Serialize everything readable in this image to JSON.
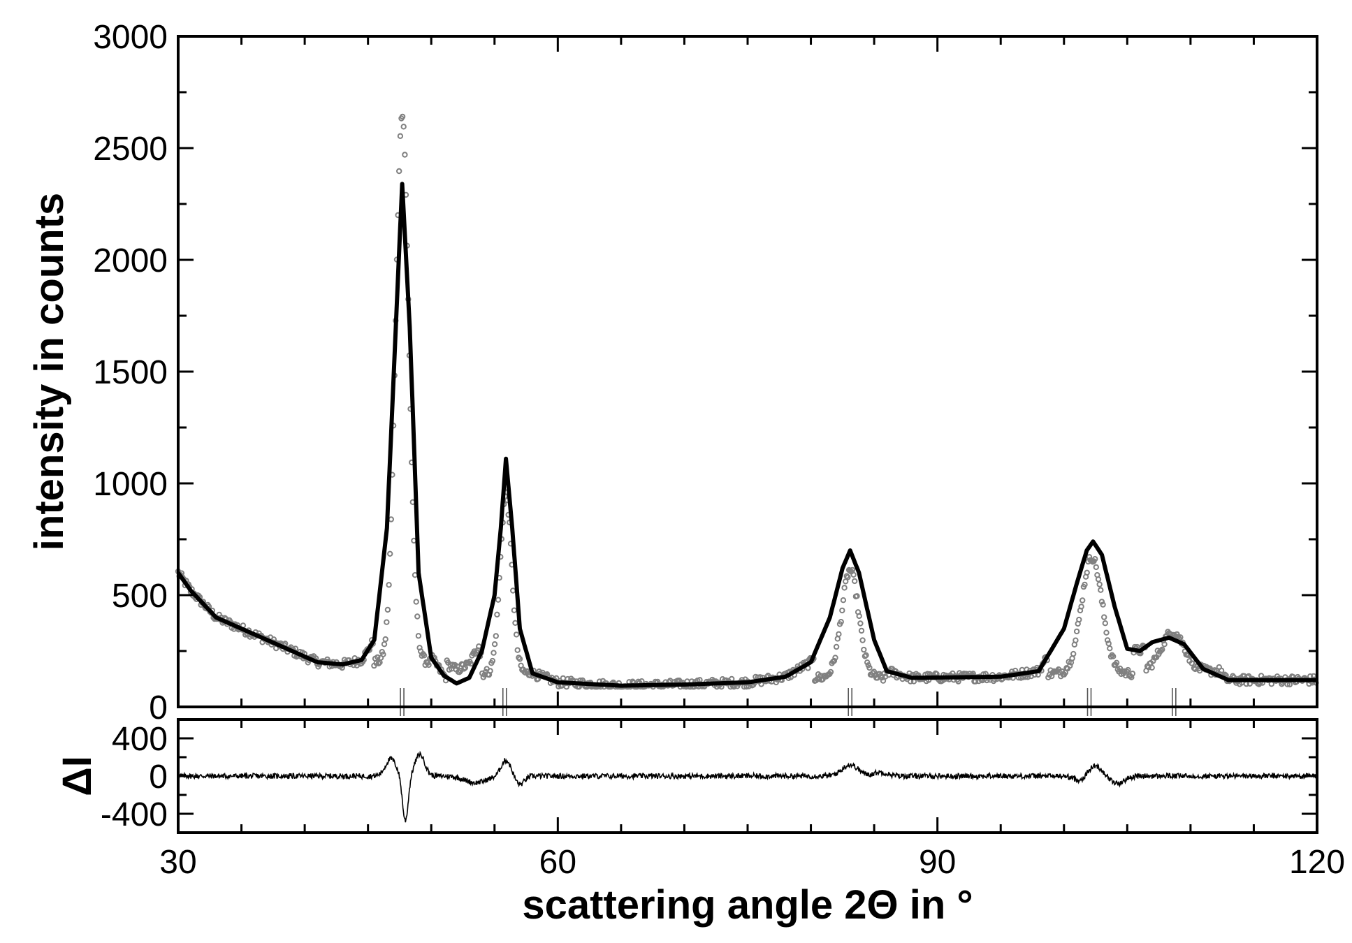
{
  "chart_data": [
    {
      "type": "scatter",
      "panel": "main",
      "xlabel": "scattering angle 2Θ  in °",
      "ylabel": "intensity in counts",
      "xlim": [
        30,
        120
      ],
      "ylim": [
        0,
        3000
      ],
      "x_ticks": [
        "30",
        "60",
        "90",
        "120"
      ],
      "y_ticks": [
        "0",
        "500",
        "1000",
        "1500",
        "2000",
        "2500",
        "3000"
      ],
      "x_minor_step": 5,
      "y_minor_step": 250,
      "series": [
        {
          "kind": "measured",
          "style": "grey open circles",
          "color": "#808080",
          "peaks": [
            {
              "center": 47.7,
              "height": 2450,
              "width": 0.75
            },
            {
              "center": 55.9,
              "height": 800,
              "width": 0.65
            },
            {
              "center": 83.1,
              "height": 480,
              "width": 0.95
            },
            {
              "center": 102.2,
              "height": 520,
              "width": 1.15
            },
            {
              "center": 108.6,
              "height": 175,
              "width": 1.3
            }
          ]
        },
        {
          "kind": "fit",
          "style": "black solid line",
          "color": "#000000",
          "points": [
            [
              30,
              600
            ],
            [
              31,
              520
            ],
            [
              33,
              400
            ],
            [
              35,
              350
            ],
            [
              37,
              300
            ],
            [
              39,
              250
            ],
            [
              41,
              200
            ],
            [
              43,
              190
            ],
            [
              44.5,
              210
            ],
            [
              45.5,
              300
            ],
            [
              46.5,
              800
            ],
            [
              47.2,
              1700
            ],
            [
              47.7,
              2340
            ],
            [
              48.3,
              1700
            ],
            [
              49,
              600
            ],
            [
              50,
              220
            ],
            [
              51,
              140
            ],
            [
              52,
              105
            ],
            [
              53,
              130
            ],
            [
              54,
              250
            ],
            [
              55,
              500
            ],
            [
              55.5,
              800
            ],
            [
              55.9,
              1110
            ],
            [
              56.4,
              800
            ],
            [
              57,
              350
            ],
            [
              58,
              150
            ],
            [
              60,
              110
            ],
            [
              65,
              95
            ],
            [
              70,
              100
            ],
            [
              75,
              110
            ],
            [
              78,
              135
            ],
            [
              80,
              200
            ],
            [
              81.5,
              400
            ],
            [
              82.5,
              620
            ],
            [
              83.1,
              700
            ],
            [
              83.8,
              600
            ],
            [
              85,
              300
            ],
            [
              86,
              160
            ],
            [
              88,
              130
            ],
            [
              95,
              135
            ],
            [
              98,
              160
            ],
            [
              100,
              350
            ],
            [
              101,
              550
            ],
            [
              101.8,
              700
            ],
            [
              102.3,
              740
            ],
            [
              103,
              680
            ],
            [
              104,
              450
            ],
            [
              105,
              260
            ],
            [
              106,
              250
            ],
            [
              107,
              290
            ],
            [
              108.3,
              310
            ],
            [
              109.5,
              280
            ],
            [
              111,
              170
            ],
            [
              113,
              120
            ],
            [
              120,
              120
            ]
          ]
        }
      ],
      "reflection_ticks": [
        47.7,
        55.8,
        83.1,
        102.0,
        108.7
      ]
    },
    {
      "type": "line",
      "panel": "difference",
      "ylabel": "ΔI",
      "xlim": [
        30,
        120
      ],
      "ylim": [
        -600,
        600
      ],
      "y_ticks": [
        "400",
        "0",
        "-400"
      ],
      "y_tick_values": [
        400,
        0,
        -400
      ],
      "y_minor_values": [
        200,
        -200
      ],
      "color": "#000000",
      "features": [
        {
          "center": 46.8,
          "amplitude": 180,
          "width": 0.6
        },
        {
          "center": 47.95,
          "amplitude": -480,
          "width": 0.32
        },
        {
          "center": 49.1,
          "amplitude": 230,
          "width": 0.55
        },
        {
          "center": 53.5,
          "amplitude": -70,
          "width": 1.2
        },
        {
          "center": 55.9,
          "amplitude": 170,
          "width": 0.55
        },
        {
          "center": 57.0,
          "amplitude": -90,
          "width": 0.5
        },
        {
          "center": 83.1,
          "amplitude": 120,
          "width": 0.9
        },
        {
          "center": 85.5,
          "amplitude": 40,
          "width": 0.8
        },
        {
          "center": 101.5,
          "amplitude": -80,
          "width": 0.8
        },
        {
          "center": 102.3,
          "amplitude": 130,
          "width": 0.9
        },
        {
          "center": 104.2,
          "amplitude": -80,
          "width": 0.8
        }
      ],
      "noise_amplitude": 28
    }
  ]
}
